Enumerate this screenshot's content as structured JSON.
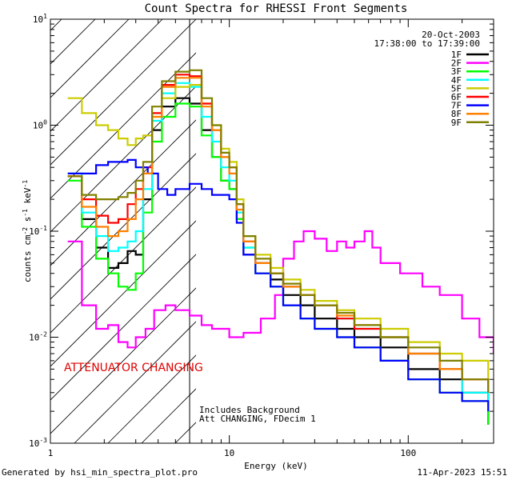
{
  "chart_data": {
    "type": "line",
    "title": "Count Spectra for RHESSI Front Segments",
    "xlabel": "Energy (keV)",
    "ylabel_main": "counts cm",
    "ylabel_exp1": "-2",
    "ylabel_mid": " s",
    "ylabel_exp2": "-1",
    "ylabel_end": " keV",
    "ylabel_exp3": "-1",
    "x_scale": "log",
    "y_scale": "log",
    "xlim": [
      1,
      300
    ],
    "ylim": [
      0.001,
      10
    ],
    "x_ticks": [
      {
        "v": 1,
        "label": "1"
      },
      {
        "v": 10,
        "label": "10"
      },
      {
        "v": 100,
        "label": "100"
      }
    ],
    "y_ticks": [
      {
        "v": 0.001,
        "base": "10",
        "exp": "-3"
      },
      {
        "v": 0.01,
        "base": "10",
        "exp": "-2"
      },
      {
        "v": 0.1,
        "base": "10",
        "exp": "-1"
      },
      {
        "v": 1,
        "base": "10",
        "exp": "0"
      },
      {
        "v": 10,
        "base": "10",
        "exp": "1"
      }
    ],
    "legend_position": "top-right",
    "date": "20-Oct-2003",
    "time_range": "17:38:00 to 17:39:00",
    "attenuator_text": "ATTENUATOR CHANGING",
    "attenuator_color": "#e00000",
    "note_line1": "Includes Background",
    "note_line2": "Att CHANGING, FDecim 1",
    "shaded_region_keV": [
      1,
      6
    ],
    "series": [
      {
        "name": "1F",
        "color": "#000000",
        "points": [
          [
            1.25,
            0.33
          ],
          [
            1.5,
            0.13
          ],
          [
            1.8,
            0.07
          ],
          [
            2.1,
            0.045
          ],
          [
            2.4,
            0.05
          ],
          [
            2.7,
            0.065
          ],
          [
            3,
            0.06
          ],
          [
            3.3,
            0.2
          ],
          [
            3.7,
            0.9
          ],
          [
            4.2,
            1.5
          ],
          [
            5,
            1.8
          ],
          [
            6,
            1.6
          ],
          [
            7,
            0.9
          ],
          [
            8,
            0.5
          ],
          [
            9,
            0.3
          ],
          [
            10,
            0.25
          ],
          [
            11,
            0.13
          ],
          [
            12,
            0.06
          ],
          [
            14,
            0.05
          ],
          [
            17,
            0.035
          ],
          [
            20,
            0.025
          ],
          [
            25,
            0.02
          ],
          [
            30,
            0.015
          ],
          [
            40,
            0.012
          ],
          [
            50,
            0.01
          ],
          [
            70,
            0.008
          ],
          [
            100,
            0.005
          ],
          [
            150,
            0.004
          ],
          [
            200,
            0.003
          ],
          [
            280,
            0.0015
          ]
        ]
      },
      {
        "name": "2F",
        "color": "#ff00ff",
        "points": [
          [
            1.25,
            0.08
          ],
          [
            1.5,
            0.02
          ],
          [
            1.8,
            0.012
          ],
          [
            2.1,
            0.013
          ],
          [
            2.4,
            0.009
          ],
          [
            2.7,
            0.008
          ],
          [
            3,
            0.01
          ],
          [
            3.4,
            0.012
          ],
          [
            3.8,
            0.018
          ],
          [
            4.4,
            0.02
          ],
          [
            5,
            0.018
          ],
          [
            6,
            0.016
          ],
          [
            7,
            0.013
          ],
          [
            8,
            0.012
          ],
          [
            10,
            0.01
          ],
          [
            12,
            0.011
          ],
          [
            15,
            0.015
          ],
          [
            18,
            0.025
          ],
          [
            20,
            0.055
          ],
          [
            23,
            0.08
          ],
          [
            26,
            0.1
          ],
          [
            30,
            0.085
          ],
          [
            35,
            0.065
          ],
          [
            40,
            0.08
          ],
          [
            45,
            0.07
          ],
          [
            50,
            0.08
          ],
          [
            57,
            0.1
          ],
          [
            63,
            0.07
          ],
          [
            70,
            0.05
          ],
          [
            90,
            0.04
          ],
          [
            120,
            0.03
          ],
          [
            150,
            0.025
          ],
          [
            200,
            0.015
          ],
          [
            250,
            0.01
          ],
          [
            300,
            0.007
          ]
        ]
      },
      {
        "name": "3F",
        "color": "#00ff00",
        "points": [
          [
            1.25,
            0.3
          ],
          [
            1.5,
            0.11
          ],
          [
            1.8,
            0.055
          ],
          [
            2.1,
            0.04
          ],
          [
            2.4,
            0.03
          ],
          [
            2.7,
            0.028
          ],
          [
            3,
            0.04
          ],
          [
            3.3,
            0.15
          ],
          [
            3.7,
            0.7
          ],
          [
            4.2,
            1.2
          ],
          [
            5,
            1.6
          ],
          [
            6,
            1.5
          ],
          [
            7,
            0.8
          ],
          [
            8,
            0.5
          ],
          [
            9,
            0.3
          ],
          [
            10,
            0.25
          ],
          [
            11,
            0.13
          ],
          [
            12,
            0.07
          ],
          [
            14,
            0.04
          ],
          [
            17,
            0.03
          ],
          [
            20,
            0.02
          ],
          [
            25,
            0.015
          ],
          [
            30,
            0.012
          ],
          [
            40,
            0.01
          ],
          [
            50,
            0.008
          ],
          [
            70,
            0.006
          ],
          [
            100,
            0.004
          ],
          [
            150,
            0.003
          ],
          [
            200,
            0.0025
          ],
          [
            280,
            0.0015
          ]
        ]
      },
      {
        "name": "4F",
        "color": "#00ffff",
        "points": [
          [
            1.25,
            0.35
          ],
          [
            1.5,
            0.15
          ],
          [
            1.8,
            0.09
          ],
          [
            2.1,
            0.065
          ],
          [
            2.4,
            0.07
          ],
          [
            2.7,
            0.08
          ],
          [
            3,
            0.1
          ],
          [
            3.3,
            0.25
          ],
          [
            3.7,
            1.1
          ],
          [
            4.2,
            2.0
          ],
          [
            5,
            2.5
          ],
          [
            6,
            2.3
          ],
          [
            7,
            1.2
          ],
          [
            8,
            0.7
          ],
          [
            9,
            0.4
          ],
          [
            10,
            0.3
          ],
          [
            11,
            0.15
          ],
          [
            12,
            0.07
          ],
          [
            14,
            0.05
          ],
          [
            17,
            0.04
          ],
          [
            20,
            0.03
          ],
          [
            25,
            0.025
          ],
          [
            30,
            0.02
          ],
          [
            40,
            0.015
          ],
          [
            50,
            0.012
          ],
          [
            70,
            0.01
          ],
          [
            100,
            0.007
          ],
          [
            150,
            0.005
          ],
          [
            200,
            0.003
          ],
          [
            280,
            0.002
          ]
        ]
      },
      {
        "name": "5F",
        "color": "#cccc00",
        "points": [
          [
            1.25,
            1.8
          ],
          [
            1.5,
            1.3
          ],
          [
            1.8,
            1.0
          ],
          [
            2.1,
            0.9
          ],
          [
            2.4,
            0.75
          ],
          [
            2.7,
            0.65
          ],
          [
            3,
            0.75
          ],
          [
            3.3,
            0.8
          ],
          [
            3.7,
            1.2
          ],
          [
            4.2,
            1.8
          ],
          [
            5,
            2.3
          ],
          [
            6,
            2.4
          ],
          [
            7,
            1.6
          ],
          [
            8,
            1.0
          ],
          [
            9,
            0.6
          ],
          [
            10,
            0.45
          ],
          [
            11,
            0.2
          ],
          [
            12,
            0.09
          ],
          [
            14,
            0.06
          ],
          [
            17,
            0.045
          ],
          [
            20,
            0.035
          ],
          [
            25,
            0.028
          ],
          [
            30,
            0.022
          ],
          [
            40,
            0.018
          ],
          [
            50,
            0.015
          ],
          [
            70,
            0.012
          ],
          [
            100,
            0.009
          ],
          [
            150,
            0.007
          ],
          [
            200,
            0.006
          ],
          [
            280,
            0.004
          ]
        ]
      },
      {
        "name": "6F",
        "color": "#ff0000",
        "points": [
          [
            1.25,
            0.33
          ],
          [
            1.5,
            0.2
          ],
          [
            1.8,
            0.14
          ],
          [
            2.1,
            0.12
          ],
          [
            2.4,
            0.13
          ],
          [
            2.7,
            0.18
          ],
          [
            3,
            0.25
          ],
          [
            3.3,
            0.4
          ],
          [
            3.7,
            1.3
          ],
          [
            4.2,
            2.4
          ],
          [
            5,
            3.0
          ],
          [
            6,
            2.9
          ],
          [
            7,
            1.6
          ],
          [
            8,
            0.9
          ],
          [
            9,
            0.5
          ],
          [
            10,
            0.4
          ],
          [
            11,
            0.18
          ],
          [
            12,
            0.08
          ],
          [
            14,
            0.05
          ],
          [
            17,
            0.04
          ],
          [
            20,
            0.03
          ],
          [
            25,
            0.025
          ],
          [
            30,
            0.02
          ],
          [
            40,
            0.015
          ],
          [
            50,
            0.012
          ],
          [
            70,
            0.01
          ],
          [
            100,
            0.007
          ],
          [
            150,
            0.005
          ],
          [
            200,
            0.004
          ],
          [
            280,
            0.003
          ]
        ]
      },
      {
        "name": "7F",
        "color": "#0000ff",
        "points": [
          [
            1.25,
            0.35
          ],
          [
            1.5,
            0.35
          ],
          [
            1.8,
            0.42
          ],
          [
            2.1,
            0.45
          ],
          [
            2.4,
            0.45
          ],
          [
            2.7,
            0.47
          ],
          [
            3,
            0.4
          ],
          [
            3.5,
            0.35
          ],
          [
            4,
            0.25
          ],
          [
            4.5,
            0.22
          ],
          [
            5,
            0.25
          ],
          [
            6,
            0.28
          ],
          [
            7,
            0.25
          ],
          [
            8,
            0.22
          ],
          [
            9,
            0.22
          ],
          [
            10,
            0.2
          ],
          [
            11,
            0.12
          ],
          [
            12,
            0.06
          ],
          [
            14,
            0.04
          ],
          [
            17,
            0.03
          ],
          [
            20,
            0.02
          ],
          [
            25,
            0.015
          ],
          [
            30,
            0.012
          ],
          [
            40,
            0.01
          ],
          [
            50,
            0.008
          ],
          [
            70,
            0.006
          ],
          [
            100,
            0.004
          ],
          [
            150,
            0.003
          ],
          [
            200,
            0.0025
          ],
          [
            280,
            0.002
          ]
        ]
      },
      {
        "name": "8F",
        "color": "#ff8000",
        "points": [
          [
            1.25,
            0.33
          ],
          [
            1.5,
            0.17
          ],
          [
            1.8,
            0.11
          ],
          [
            2.1,
            0.09
          ],
          [
            2.4,
            0.1
          ],
          [
            2.7,
            0.13
          ],
          [
            3,
            0.2
          ],
          [
            3.3,
            0.35
          ],
          [
            3.7,
            1.2
          ],
          [
            4.2,
            2.3
          ],
          [
            5,
            2.8
          ],
          [
            6,
            2.8
          ],
          [
            7,
            1.5
          ],
          [
            8,
            0.9
          ],
          [
            9,
            0.5
          ],
          [
            10,
            0.35
          ],
          [
            11,
            0.16
          ],
          [
            12,
            0.08
          ],
          [
            14,
            0.05
          ],
          [
            17,
            0.04
          ],
          [
            20,
            0.03
          ],
          [
            25,
            0.025
          ],
          [
            30,
            0.02
          ],
          [
            40,
            0.016
          ],
          [
            50,
            0.013
          ],
          [
            70,
            0.01
          ],
          [
            100,
            0.007
          ],
          [
            150,
            0.005
          ],
          [
            200,
            0.004
          ],
          [
            280,
            0.003
          ]
        ]
      },
      {
        "name": "9F",
        "color": "#808000",
        "points": [
          [
            1.25,
            0.33
          ],
          [
            1.5,
            0.22
          ],
          [
            1.8,
            0.2
          ],
          [
            2.1,
            0.2
          ],
          [
            2.4,
            0.21
          ],
          [
            2.7,
            0.23
          ],
          [
            3,
            0.3
          ],
          [
            3.3,
            0.45
          ],
          [
            3.7,
            1.5
          ],
          [
            4.2,
            2.6
          ],
          [
            5,
            3.2
          ],
          [
            6,
            3.3
          ],
          [
            7,
            1.8
          ],
          [
            8,
            1.0
          ],
          [
            9,
            0.55
          ],
          [
            10,
            0.4
          ],
          [
            11,
            0.18
          ],
          [
            12,
            0.09
          ],
          [
            14,
            0.055
          ],
          [
            17,
            0.04
          ],
          [
            20,
            0.032
          ],
          [
            25,
            0.025
          ],
          [
            30,
            0.02
          ],
          [
            40,
            0.017
          ],
          [
            50,
            0.013
          ],
          [
            70,
            0.01
          ],
          [
            100,
            0.008
          ],
          [
            150,
            0.006
          ],
          [
            200,
            0.004
          ],
          [
            280,
            0.003
          ]
        ]
      }
    ]
  },
  "footer": {
    "generated_by": "Generated by hsi_min_spectra_plot.pro",
    "timestamp": "11-Apr-2023 15:51"
  }
}
